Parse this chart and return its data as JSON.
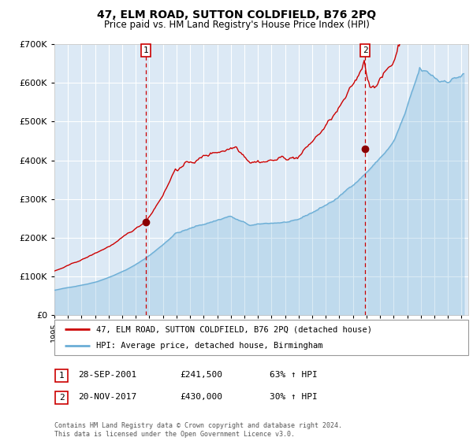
{
  "title": "47, ELM ROAD, SUTTON COLDFIELD, B76 2PQ",
  "subtitle": "Price paid vs. HM Land Registry's House Price Index (HPI)",
  "legend_line1": "47, ELM ROAD, SUTTON COLDFIELD, B76 2PQ (detached house)",
  "legend_line2": "HPI: Average price, detached house, Birmingham",
  "sale1_date": "28-SEP-2001",
  "sale1_price": "£241,500",
  "sale1_hpi": "63% ↑ HPI",
  "sale2_date": "20-NOV-2017",
  "sale2_price": "£430,000",
  "sale2_hpi": "30% ↑ HPI",
  "footnote": "Contains HM Land Registry data © Crown copyright and database right 2024.\nThis data is licensed under the Open Government Licence v3.0.",
  "hpi_color": "#6baed6",
  "price_color": "#cc0000",
  "background_color": "#dce9f5",
  "sale_marker_color": "#8b0000",
  "dashed_line_color": "#cc0000",
  "grid_color": "#ffffff",
  "ylim": [
    0,
    700000
  ],
  "yticks": [
    0,
    100000,
    200000,
    300000,
    400000,
    500000,
    600000,
    700000
  ],
  "sale1_x": 2001.75,
  "sale1_y": 241500,
  "sale2_x": 2017.9,
  "sale2_y": 430000,
  "xmin": 1995,
  "xmax": 2025.5
}
